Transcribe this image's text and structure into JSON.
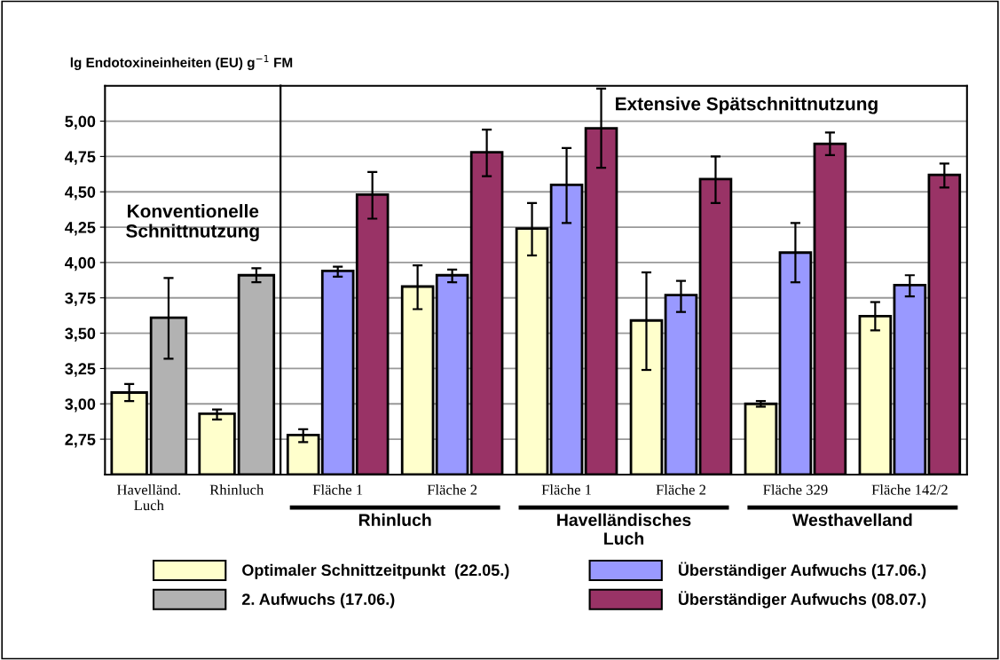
{
  "chart_data": [
    {
      "type": "bar",
      "ylabel": "lg Endotoxineinheiten (EU) g$^{−1}$ FM",
      "categories": [
        "Havelländ.\nLuch",
        "Rhinluch"
      ],
      "series": [
        {
          "name": "Optimaler Schnittzeitpunkt  (22.05.)",
          "color": "#ffffcc",
          "values": [
            3.08,
            2.93
          ],
          "errors": [
            [
              3.02,
              3.14
            ],
            [
              2.89,
              2.96
            ]
          ]
        },
        {
          "name": "2. Aufwuchs (17.06.)",
          "color": "#b2b2b2",
          "values": [
            3.61,
            3.91
          ],
          "errors": [
            [
              3.32,
              3.89
            ],
            [
              3.86,
              3.96
            ]
          ]
        }
      ],
      "ylim": [
        2.5,
        5.25
      ],
      "yticks": [
        {
          "value": 2.75,
          "label": "2,75"
        },
        {
          "value": 3.0,
          "label": "3,00"
        },
        {
          "value": 3.25,
          "label": "3,25"
        },
        {
          "value": 3.5,
          "label": "3,50"
        },
        {
          "value": 3.75,
          "label": "3,75"
        },
        {
          "value": 4.0,
          "label": "4,00"
        },
        {
          "value": 4.25,
          "label": "4,25"
        },
        {
          "value": 4.5,
          "label": "4,50"
        },
        {
          "value": 4.75,
          "label": "4,75"
        },
        {
          "value": 5.0,
          "label": "5,00"
        }
      ],
      "grid": "y",
      "legend": "bottom",
      "annotations": [
        "Konventionelle\nSchnittnutzung"
      ]
    },
    {
      "type": "bar",
      "categories": [
        "Fläche 1",
        "Fläche 2",
        "Fläche 1",
        "Fläche 2",
        "Fläche 329",
        "Fläche 142/2"
      ],
      "series": [
        {
          "color": "#ffffcc",
          "values": [
            2.78,
            3.83,
            4.24,
            3.59,
            3.0,
            3.62
          ],
          "errors": [
            [
              2.73,
              2.82
            ],
            [
              3.67,
              3.98
            ],
            [
              4.05,
              4.42
            ],
            [
              3.24,
              3.93
            ],
            [
              2.98,
              3.02
            ],
            [
              3.52,
              3.72
            ]
          ]
        },
        {
          "name": "Überständiger Aufwuchs (17.06.)",
          "color": "#9999ff",
          "values": [
            3.94,
            3.91,
            4.55,
            3.77,
            4.07,
            3.84
          ],
          "errors": [
            [
              3.9,
              3.97
            ],
            [
              3.86,
              3.95
            ],
            [
              4.28,
              4.81
            ],
            [
              3.65,
              3.87
            ],
            [
              3.86,
              4.28
            ],
            [
              3.76,
              3.91
            ]
          ]
        },
        {
          "name": "Überständiger Aufwuchs (08.07.)",
          "color": "#993366",
          "values": [
            4.48,
            4.78,
            4.95,
            4.59,
            4.84,
            4.62
          ],
          "errors": [
            [
              4.31,
              4.64
            ],
            [
              4.61,
              4.94
            ],
            [
              4.67,
              5.23
            ],
            [
              4.42,
              4.75
            ],
            [
              4.76,
              4.92
            ],
            [
              4.53,
              4.7
            ]
          ]
        }
      ],
      "ylim": [
        2.5,
        5.25
      ],
      "yticks": [
        {
          "value": 2.75,
          "label": null
        },
        {
          "value": 3.0,
          "label": null
        },
        {
          "value": 3.25,
          "label": null
        },
        {
          "value": 3.5,
          "label": null
        },
        {
          "value": 3.75,
          "label": null
        },
        {
          "value": 4.0,
          "label": null
        },
        {
          "value": 4.25,
          "label": null
        },
        {
          "value": 4.5,
          "label": null
        },
        {
          "value": 4.75,
          "label": null
        },
        {
          "value": 5.0,
          "label": null
        }
      ],
      "tick_labels": "x",
      "grid": "y",
      "legend": "bottom",
      "annotations": [
        "Extensive Spätschnittnutzung",
        "Rhinluch",
        "Havelländisches\nLuch",
        "Westhavelland"
      ]
    }
  ]
}
